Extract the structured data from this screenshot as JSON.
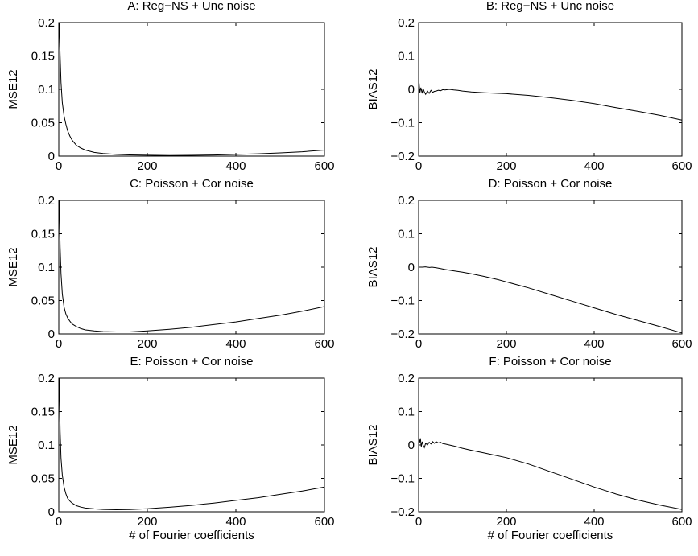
{
  "chart_data": [
    {
      "type": "line",
      "title": "A: Reg−NS + Unc noise",
      "xlabel": "",
      "ylabel": "MSE12",
      "xlim": [
        0,
        600
      ],
      "ylim": [
        0,
        0.2
      ],
      "xticks": [
        0,
        200,
        400,
        600
      ],
      "yticks": [
        0,
        0.05,
        0.1,
        0.15,
        0.2
      ],
      "xtick_labels": [
        "0",
        "200",
        "400",
        "600"
      ],
      "ytick_labels": [
        "0",
        "0.05",
        "0.1",
        "0.15",
        "0.2"
      ],
      "grid": false,
      "series": [
        {
          "x": [
            1,
            3,
            5,
            8,
            12,
            16,
            20,
            25,
            30,
            40,
            50,
            60,
            80,
            100,
            130,
            160,
            200,
            250,
            300,
            350,
            400,
            450,
            500,
            550,
            600
          ],
          "y": [
            0.2,
            0.15,
            0.11,
            0.08,
            0.06,
            0.048,
            0.038,
            0.03,
            0.024,
            0.016,
            0.012,
            0.009,
            0.0055,
            0.0038,
            0.0025,
            0.0018,
            0.0013,
            0.001,
            0.0012,
            0.0017,
            0.0025,
            0.0035,
            0.0048,
            0.0065,
            0.009
          ]
        }
      ]
    },
    {
      "type": "line",
      "title": "B: Reg−NS + Unc noise",
      "xlabel": "",
      "ylabel": "BIAS12",
      "xlim": [
        0,
        600
      ],
      "ylim": [
        -0.2,
        0.2
      ],
      "xticks": [
        0,
        200,
        400,
        600
      ],
      "yticks": [
        -0.2,
        -0.1,
        0,
        0.1,
        0.2
      ],
      "xtick_labels": [
        "0",
        "200",
        "400",
        "600"
      ],
      "ytick_labels": [
        "−0.2",
        "−0.1",
        "0",
        "0.1",
        "0.2"
      ],
      "grid": false,
      "series": [
        {
          "x": [
            1,
            3,
            5,
            8,
            10,
            13,
            16,
            20,
            24,
            28,
            32,
            36,
            40,
            45,
            50,
            55,
            60,
            70,
            80,
            90,
            100,
            120,
            150,
            200,
            250,
            300,
            350,
            400,
            450,
            500,
            550,
            600
          ],
          "y": [
            0.02,
            -0.01,
            0.005,
            -0.012,
            0.003,
            -0.008,
            -0.015,
            -0.005,
            -0.012,
            -0.003,
            -0.009,
            -0.006,
            -0.005,
            -0.003,
            -0.004,
            -0.001,
            -0.002,
            0.0,
            -0.002,
            -0.003,
            -0.005,
            -0.008,
            -0.01,
            -0.013,
            -0.018,
            -0.025,
            -0.033,
            -0.043,
            -0.055,
            -0.066,
            -0.078,
            -0.092
          ]
        }
      ]
    },
    {
      "type": "line",
      "title": "C: Poisson + Cor noise",
      "xlabel": "",
      "ylabel": "MSE12",
      "xlim": [
        0,
        600
      ],
      "ylim": [
        0,
        0.2
      ],
      "xticks": [
        0,
        200,
        400,
        600
      ],
      "yticks": [
        0,
        0.05,
        0.1,
        0.15,
        0.2
      ],
      "xtick_labels": [
        "0",
        "200",
        "400",
        "600"
      ],
      "ytick_labels": [
        "0",
        "0.05",
        "0.1",
        "0.15",
        "0.2"
      ],
      "grid": false,
      "series": [
        {
          "x": [
            1,
            3,
            5,
            8,
            12,
            16,
            20,
            25,
            30,
            40,
            50,
            60,
            80,
            100,
            130,
            160,
            200,
            250,
            300,
            350,
            400,
            450,
            500,
            550,
            600
          ],
          "y": [
            0.2,
            0.13,
            0.09,
            0.06,
            0.04,
            0.03,
            0.024,
            0.019,
            0.015,
            0.011,
            0.008,
            0.006,
            0.0045,
            0.0035,
            0.003,
            0.003,
            0.0045,
            0.007,
            0.01,
            0.014,
            0.018,
            0.023,
            0.028,
            0.034,
            0.041
          ]
        }
      ]
    },
    {
      "type": "line",
      "title": "D: Poisson + Cor noise",
      "xlabel": "",
      "ylabel": "BIAS12",
      "xlim": [
        0,
        600
      ],
      "ylim": [
        -0.2,
        0.2
      ],
      "xticks": [
        0,
        200,
        400,
        600
      ],
      "yticks": [
        -0.2,
        -0.1,
        0,
        0.1,
        0.2
      ],
      "xtick_labels": [
        "0",
        "200",
        "400",
        "600"
      ],
      "ytick_labels": [
        "−0.2",
        "−0.1",
        "0",
        "0.1",
        "0.2"
      ],
      "grid": false,
      "series": [
        {
          "x": [
            1,
            5,
            10,
            15,
            20,
            25,
            30,
            40,
            50,
            60,
            70,
            80,
            100,
            120,
            150,
            180,
            200,
            250,
            300,
            350,
            400,
            450,
            500,
            550,
            600
          ],
          "y": [
            0.0,
            0.0,
            0.0,
            0.001,
            0.0,
            -0.001,
            0.0,
            -0.002,
            -0.004,
            -0.007,
            -0.009,
            -0.011,
            -0.015,
            -0.02,
            -0.028,
            -0.037,
            -0.044,
            -0.062,
            -0.082,
            -0.102,
            -0.122,
            -0.142,
            -0.16,
            -0.178,
            -0.197
          ]
        }
      ]
    },
    {
      "type": "line",
      "title": "E: Poisson + Cor noise",
      "xlabel": "# of Fourier coefficients",
      "ylabel": "MSE12",
      "xlim": [
        0,
        600
      ],
      "ylim": [
        0,
        0.2
      ],
      "xticks": [
        0,
        200,
        400,
        600
      ],
      "yticks": [
        0,
        0.05,
        0.1,
        0.15,
        0.2
      ],
      "xtick_labels": [
        "0",
        "200",
        "400",
        "600"
      ],
      "ytick_labels": [
        "0",
        "0.05",
        "0.1",
        "0.15",
        "0.2"
      ],
      "grid": false,
      "series": [
        {
          "x": [
            1,
            3,
            5,
            8,
            12,
            16,
            20,
            25,
            30,
            40,
            50,
            60,
            80,
            100,
            130,
            160,
            200,
            250,
            300,
            350,
            400,
            450,
            500,
            550,
            600
          ],
          "y": [
            0.2,
            0.12,
            0.08,
            0.055,
            0.037,
            0.027,
            0.02,
            0.016,
            0.013,
            0.009,
            0.007,
            0.0055,
            0.0043,
            0.0035,
            0.003,
            0.0032,
            0.0045,
            0.0068,
            0.0095,
            0.013,
            0.017,
            0.021,
            0.026,
            0.031,
            0.037
          ]
        }
      ]
    },
    {
      "type": "line",
      "title": "F: Poisson + Cor noise",
      "xlabel": "# of Fourier coefficients",
      "ylabel": "BIAS12",
      "xlim": [
        0,
        600
      ],
      "ylim": [
        -0.2,
        0.2
      ],
      "xticks": [
        0,
        200,
        400,
        600
      ],
      "yticks": [
        -0.2,
        -0.1,
        0,
        0.1,
        0.2
      ],
      "xtick_labels": [
        "0",
        "200",
        "400",
        "600"
      ],
      "ytick_labels": [
        "−0.2",
        "−0.1",
        "0",
        "0.1",
        "0.2"
      ],
      "grid": false,
      "series": [
        {
          "x": [
            1,
            2,
            4,
            6,
            8,
            10,
            13,
            16,
            20,
            24,
            28,
            32,
            36,
            40,
            45,
            50,
            55,
            60,
            70,
            80,
            100,
            120,
            150,
            200,
            250,
            300,
            350,
            400,
            450,
            500,
            550,
            600
          ],
          "y": [
            0.02,
            0.005,
            0.02,
            -0.005,
            0.01,
            0.0,
            -0.008,
            0.005,
            0.0,
            0.008,
            0.003,
            0.01,
            0.005,
            0.01,
            0.006,
            0.008,
            0.004,
            0.003,
            0.0,
            -0.003,
            -0.01,
            -0.016,
            -0.024,
            -0.038,
            -0.057,
            -0.08,
            -0.103,
            -0.126,
            -0.147,
            -0.165,
            -0.18,
            -0.193
          ]
        }
      ]
    }
  ]
}
